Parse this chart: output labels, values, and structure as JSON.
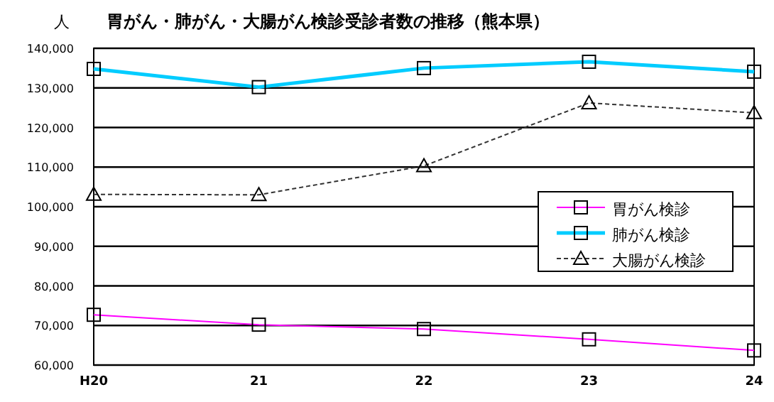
{
  "chart_data": {
    "type": "line",
    "title": "胃がん・肺がん・大腸がん検診受診者数の推移（熊本県）",
    "ylabel": "人",
    "categories": [
      "H20",
      "21",
      "22",
      "23",
      "24"
    ],
    "series": [
      {
        "name": "胃がん検診",
        "color": "#ff00ff",
        "values": [
          72700,
          70200,
          69100,
          66500,
          63700
        ],
        "marker": "square",
        "line_style": "solid"
      },
      {
        "name": "肺がん検診",
        "color": "#00ccff",
        "values": [
          134800,
          130200,
          135000,
          136600,
          134100
        ],
        "marker": "square",
        "line_style": "solid"
      },
      {
        "name": "大腸がん検診",
        "color": "#333333",
        "values": [
          103100,
          103000,
          110300,
          126200,
          123700
        ],
        "marker": "triangle",
        "line_style": "dashed"
      }
    ],
    "ylim": [
      60000,
      140000
    ],
    "yticks": [
      {
        "value": 60000,
        "label": "60,000"
      },
      {
        "value": 70000,
        "label": "70,000"
      },
      {
        "value": 80000,
        "label": "80,000"
      },
      {
        "value": 90000,
        "label": "90,000"
      },
      {
        "value": 100000,
        "label": "100,000"
      },
      {
        "value": 110000,
        "label": "110,000"
      },
      {
        "value": 120000,
        "label": "120,000"
      },
      {
        "value": 130000,
        "label": "130,000"
      },
      {
        "value": 140000,
        "label": "140,000"
      }
    ],
    "grid": "y",
    "legend": "right"
  }
}
